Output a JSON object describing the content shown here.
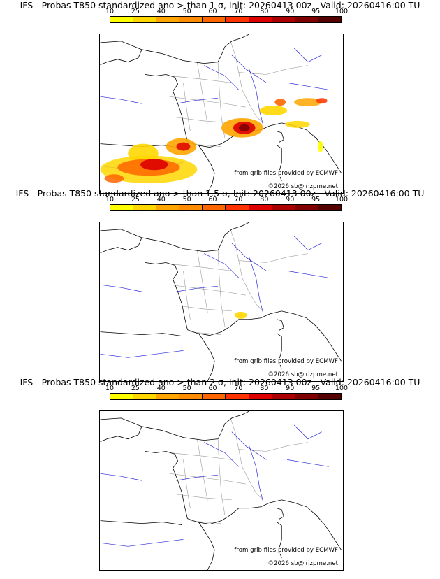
{
  "colors": {
    "legend": [
      "#ffff00",
      "#ffd700",
      "#ffa500",
      "#ff8c00",
      "#ff6600",
      "#ff3300",
      "#dd0000",
      "#aa0000",
      "#800000",
      "#550000"
    ],
    "coast": "#000000",
    "rivers": "#2a2ad8",
    "borders": "#9a9a9a"
  },
  "legend_ticks": [
    "10",
    "25",
    "40",
    "50",
    "60",
    "70",
    "80",
    "90",
    "95",
    "100"
  ],
  "panels": [
    {
      "title": "IFS - Probas T850  standardized ano > than 1 σ, Init: 20260413 00z - Valid: 20260416:00 TU",
      "credit": "from grib files provided by ECMWF",
      "copyright": "©2026 sb@irizpme.net"
    },
    {
      "title": "IFS - Probas T850  standardized ano > than 1.5 σ, Init: 20260413 00z - Valid: 20260416:00 TU",
      "credit": "from grib files provided by ECMWF",
      "copyright": "©2026 sb@irizpme.net"
    },
    {
      "title": "IFS - Probas T850  standardized ano > than 2 σ, Init: 20260413 00z - Valid: 20260416:00 TU",
      "credit": "from grib files provided by ECMWF",
      "copyright": "©2026 sb@irizpme.net"
    }
  ]
}
